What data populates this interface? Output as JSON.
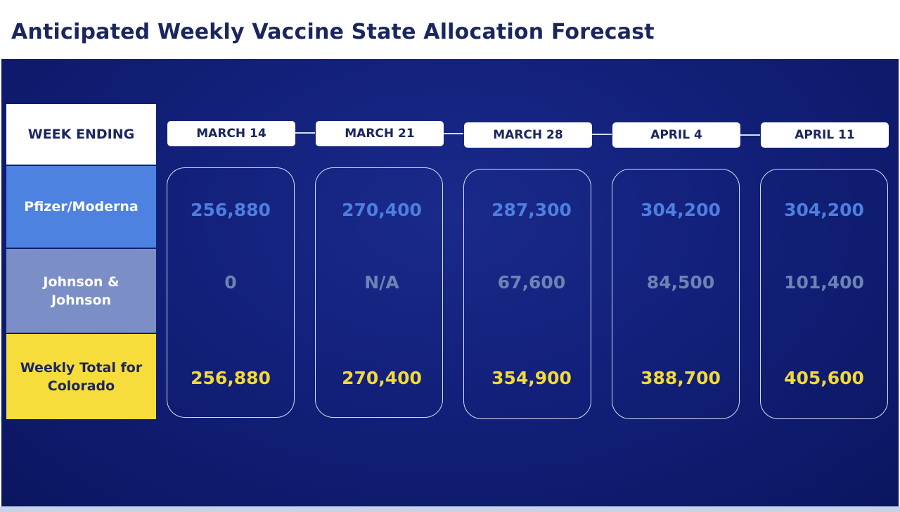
{
  "title": "Anticipated Weekly Vaccine State Allocation Forecast",
  "row_labels": {
    "week": "WEEK ENDING",
    "pfizer": "Pfizer/Moderna",
    "jj_line1": "Johnson &",
    "jj_line2": "Johnson",
    "total_line1": "Weekly Total for",
    "total_line2": "Colorado"
  },
  "columns": [
    {
      "week": "MARCH 14",
      "pfizer": "256,880",
      "jj": "0",
      "total": "256,880"
    },
    {
      "week": "MARCH 21",
      "pfizer": "270,400",
      "jj": "N/A",
      "total": "270,400"
    },
    {
      "week": "MARCH 28",
      "pfizer": "287,300",
      "jj": "67,600",
      "total": "354,900"
    },
    {
      "week": "APRIL 4",
      "pfizer": "304,200",
      "jj": "84,500",
      "total": "388,700"
    },
    {
      "week": "APRIL 11",
      "pfizer": "304,200",
      "jj": "101,400",
      "total": "405,600"
    }
  ],
  "colors": {
    "navy_background": "#12207a",
    "pfizer_blue": "#4d82e0",
    "jj_slate": "#7b8fc6",
    "total_yellow": "#f6dd3b",
    "title_navy": "#1b2660"
  },
  "chart_data": {
    "type": "table",
    "title": "Anticipated Weekly Vaccine State Allocation Forecast",
    "categories": [
      "MARCH 14",
      "MARCH 21",
      "MARCH 28",
      "APRIL 4",
      "APRIL 11"
    ],
    "series": [
      {
        "name": "Pfizer/Moderna",
        "values": [
          256880,
          270400,
          287300,
          304200,
          304200
        ]
      },
      {
        "name": "Johnson & Johnson",
        "values": [
          0,
          null,
          67600,
          84500,
          101400
        ]
      },
      {
        "name": "Weekly Total for Colorado",
        "values": [
          256880,
          270400,
          354900,
          388700,
          405600
        ]
      }
    ]
  }
}
